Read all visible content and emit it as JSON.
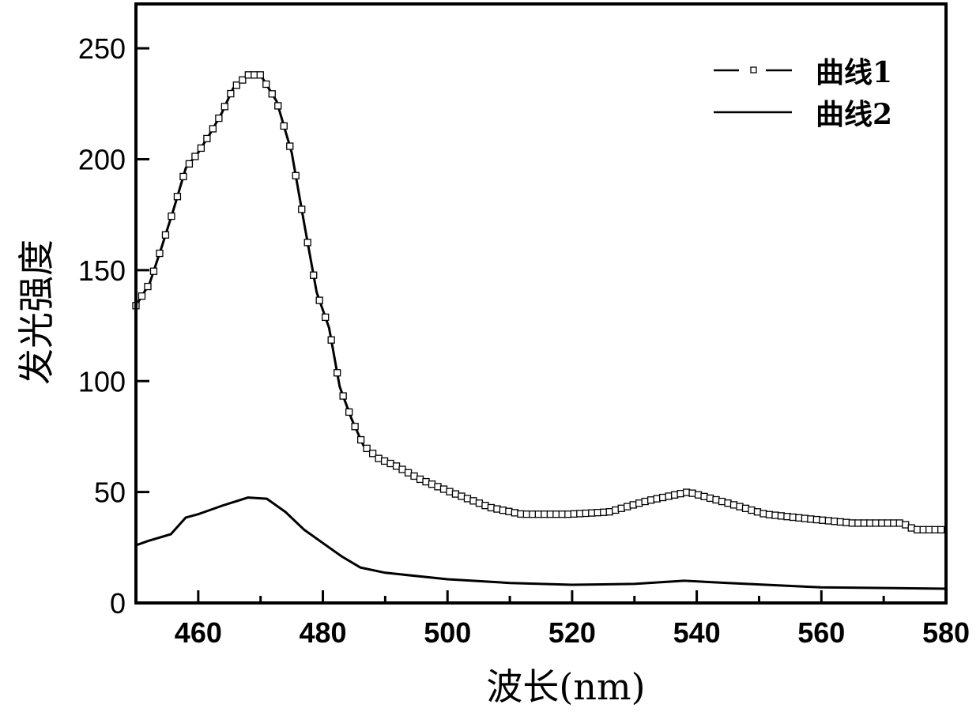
{
  "chart_data": {
    "type": "line",
    "title": "",
    "xlabel": "波长(nm)",
    "ylabel": "发光强度",
    "xlim": [
      450,
      580
    ],
    "ylim": [
      0,
      270
    ],
    "xticks": [
      460,
      480,
      500,
      520,
      540,
      560,
      580
    ],
    "xtick_labels": [
      "460",
      "480",
      "500",
      "520",
      "540",
      "560",
      "580"
    ],
    "yticks": [
      0,
      50,
      100,
      150,
      200,
      250
    ],
    "ytick_labels": [
      "0",
      "50",
      "100",
      "150",
      "200",
      "250"
    ],
    "grid": false,
    "legend_position": "top-right",
    "series": [
      {
        "name": "曲线1",
        "style": "line with open square markers",
        "color": "#000000",
        "x": [
          450,
          452.2,
          454.2,
          456,
          458,
          460,
          462,
          463.8,
          465.6,
          468,
          470,
          472.6,
          475,
          477,
          479,
          481,
          482.7,
          484.6,
          486.5,
          489,
          491.6,
          495.4,
          500.5,
          506.9,
          511.9,
          519.5,
          525.9,
          532,
          538.6,
          545,
          551,
          557.6,
          565,
          573,
          575,
          580
        ],
        "y": [
          134,
          144,
          161,
          177,
          196,
          203,
          212,
          221,
          232,
          238,
          238,
          226,
          203,
          171,
          140,
          124,
          97.5,
          83,
          71,
          65,
          62,
          56,
          50,
          43,
          40,
          40,
          41,
          46,
          50,
          45,
          40,
          38,
          36,
          36,
          33,
          33
        ]
      },
      {
        "name": "曲线2",
        "style": "solid line",
        "color": "#000000",
        "x": [
          450,
          452,
          455.6,
          458,
          460,
          464,
          468,
          471,
          474,
          477,
          480,
          483,
          486,
          490,
          500,
          510,
          520,
          530,
          538,
          545,
          560,
          580
        ],
        "y": [
          26,
          28,
          31,
          38.5,
          40,
          44,
          47.5,
          47,
          41,
          33,
          27,
          21,
          16,
          13.6,
          10.7,
          9,
          8.2,
          8.6,
          10,
          9,
          7,
          6.4
        ]
      }
    ]
  }
}
